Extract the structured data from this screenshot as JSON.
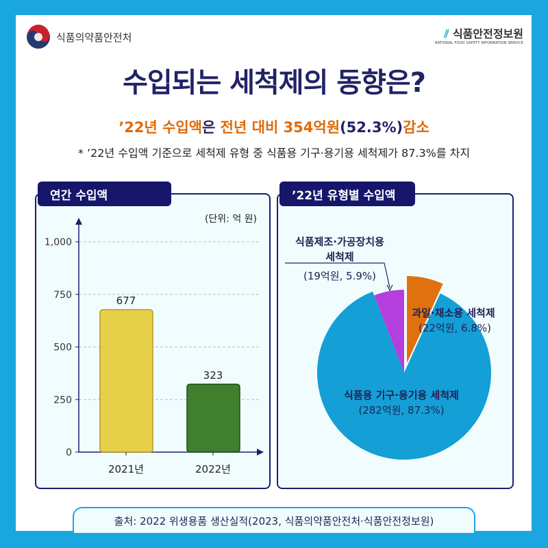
{
  "header": {
    "left_logo": "식품의약품안전처",
    "right_logo": "식품안전정보원",
    "right_logo_en": "NATIONAL FOOD SAFETY INFORMATION SERVICE"
  },
  "title": "수입되는 세척제의 동향은?",
  "subtitle": {
    "part1": "’22년 수입액",
    "part2": "은 ",
    "part3": "전년 대비 354억원",
    "part4": "(52.3%)",
    "part5": "감소"
  },
  "note": "* ’22년 수입액 기준으로 세척제 유형 중 식품용 기구·용기용 세척제가 87.3%를 차지",
  "source": "출처:  2022 위생용품 생산실적(2023, 식품의약품안전처·식품안전정보원)",
  "chart_data": [
    {
      "type": "bar",
      "title": "연간 수입액",
      "unit": "(단위: 억 원)",
      "categories": [
        "2021년",
        "2022년"
      ],
      "values": [
        677,
        323
      ],
      "labels": [
        "677",
        "323"
      ],
      "yticks": [
        "0",
        "250",
        "500",
        "750",
        "1,000"
      ],
      "ylim": [
        0,
        1000
      ],
      "colors": [
        "#e6d04a",
        "#3f7f2e"
      ],
      "grid": true
    },
    {
      "type": "pie",
      "title": "’22년 유형별 수입액",
      "slices": [
        {
          "name": "식품용 기구·용기용 세척제",
          "amount": "(282억원, 87.3%)",
          "value": 87.3,
          "color": "#149fd6"
        },
        {
          "name_line1": "식품제조·가공장치용",
          "name_line2": "세척제",
          "amount": "(19억원, 5.9%)",
          "value": 5.9,
          "color": "#b43ede"
        },
        {
          "name": "과일·채소용 세척제",
          "amount": "(22억원, 6.8%)",
          "value": 6.8,
          "color": "#e0710f"
        }
      ]
    }
  ]
}
